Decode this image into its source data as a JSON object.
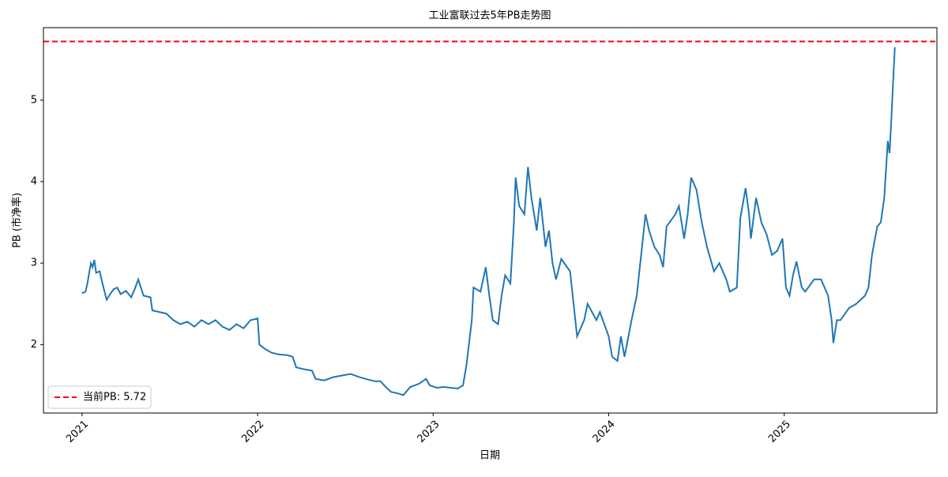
{
  "chart_data": {
    "type": "line",
    "title": "工业富联过去5年PB走势图",
    "x_label": "日期",
    "y_label": "PB (市净率)",
    "color": "#1f77b4",
    "x": [
      2021.0,
      2021.02,
      2021.03,
      2021.05,
      2021.06,
      2021.07,
      2021.08,
      2021.1,
      2021.12,
      2021.14,
      2021.16,
      2021.18,
      2021.2,
      2021.22,
      2021.25,
      2021.28,
      2021.3,
      2021.32,
      2021.35,
      2021.39,
      2021.4,
      2021.44,
      2021.48,
      2021.52,
      2021.56,
      2021.6,
      2021.64,
      2021.68,
      2021.72,
      2021.76,
      2021.8,
      2021.84,
      2021.88,
      2021.92,
      2021.96,
      2022.0,
      2022.01,
      2022.04,
      2022.08,
      2022.12,
      2022.17,
      2022.2,
      2022.22,
      2022.26,
      2022.31,
      2022.33,
      2022.38,
      2022.43,
      2022.48,
      2022.53,
      2022.58,
      2022.63,
      2022.67,
      2022.7,
      2022.73,
      2022.76,
      2022.8,
      2022.83,
      2022.87,
      2022.92,
      2022.96,
      2022.98,
      2023.02,
      2023.06,
      2023.1,
      2023.14,
      2023.17,
      2023.19,
      2023.22,
      2023.23,
      2023.27,
      2023.3,
      2023.32,
      2023.34,
      2023.37,
      2023.39,
      2023.41,
      2023.44,
      2023.46,
      2023.47,
      2023.49,
      2023.52,
      2023.54,
      2023.56,
      2023.59,
      2023.61,
      2023.64,
      2023.66,
      2023.68,
      2023.7,
      2023.73,
      2023.78,
      2023.82,
      2023.86,
      2023.88,
      2023.93,
      2023.95,
      2024.0,
      2024.02,
      2024.05,
      2024.07,
      2024.09,
      2024.13,
      2024.16,
      2024.19,
      2024.21,
      2024.23,
      2024.26,
      2024.29,
      2024.31,
      2024.33,
      2024.38,
      2024.4,
      2024.43,
      2024.45,
      2024.47,
      2024.5,
      2024.53,
      2024.56,
      2024.6,
      2024.63,
      2024.67,
      2024.69,
      2024.73,
      2024.75,
      2024.78,
      2024.8,
      2024.81,
      2024.84,
      2024.87,
      2024.9,
      2024.93,
      2024.96,
      2024.99,
      2025.01,
      2025.03,
      2025.05,
      2025.07,
      2025.1,
      2025.12,
      2025.17,
      2025.21,
      2025.25,
      2025.27,
      2025.28,
      2025.3,
      2025.32,
      2025.37,
      2025.41,
      2025.46,
      2025.48,
      2025.5,
      2025.53,
      2025.55,
      2025.57,
      2025.59,
      2025.6,
      2025.61,
      2025.62,
      2025.63
    ],
    "values": [
      2.63,
      2.65,
      2.75,
      3.0,
      2.95,
      3.04,
      2.88,
      2.9,
      2.72,
      2.55,
      2.62,
      2.68,
      2.7,
      2.62,
      2.66,
      2.58,
      2.68,
      2.8,
      2.6,
      2.58,
      2.42,
      2.4,
      2.38,
      2.3,
      2.25,
      2.28,
      2.22,
      2.3,
      2.25,
      2.3,
      2.22,
      2.18,
      2.25,
      2.2,
      2.3,
      2.32,
      2.0,
      1.95,
      1.9,
      1.88,
      1.87,
      1.85,
      1.72,
      1.7,
      1.68,
      1.58,
      1.56,
      1.6,
      1.62,
      1.64,
      1.6,
      1.57,
      1.55,
      1.55,
      1.48,
      1.42,
      1.4,
      1.38,
      1.48,
      1.52,
      1.58,
      1.5,
      1.47,
      1.48,
      1.47,
      1.46,
      1.5,
      1.75,
      2.3,
      2.7,
      2.65,
      2.95,
      2.6,
      2.3,
      2.25,
      2.6,
      2.85,
      2.75,
      3.5,
      4.05,
      3.7,
      3.6,
      4.18,
      3.8,
      3.4,
      3.8,
      3.2,
      3.4,
      3.0,
      2.8,
      3.05,
      2.9,
      2.1,
      2.3,
      2.5,
      2.3,
      2.4,
      2.1,
      1.85,
      1.8,
      2.1,
      1.85,
      2.3,
      2.6,
      3.2,
      3.6,
      3.4,
      3.2,
      3.1,
      2.95,
      3.45,
      3.6,
      3.7,
      3.3,
      3.6,
      4.05,
      3.9,
      3.5,
      3.2,
      2.9,
      3.0,
      2.8,
      2.65,
      2.7,
      3.55,
      3.92,
      3.6,
      3.3,
      3.8,
      3.5,
      3.35,
      3.1,
      3.15,
      3.3,
      2.7,
      2.6,
      2.85,
      3.02,
      2.7,
      2.65,
      2.8,
      2.8,
      2.6,
      2.3,
      2.02,
      2.3,
      2.3,
      2.45,
      2.5,
      2.6,
      2.7,
      3.1,
      3.45,
      3.5,
      3.8,
      4.5,
      4.35,
      4.75,
      5.2,
      5.65
    ],
    "xlim": [
      2020.78,
      2025.87
    ],
    "ylim": [
      1.16,
      5.89
    ],
    "xticks": [
      2021,
      2022,
      2023,
      2024,
      2025
    ],
    "yticks": [
      2,
      3,
      4,
      5
    ],
    "reference_line": {
      "value": 5.72,
      "label": "当前PB: 5.72",
      "color": "#ff0000"
    },
    "legend": "lower left"
  }
}
